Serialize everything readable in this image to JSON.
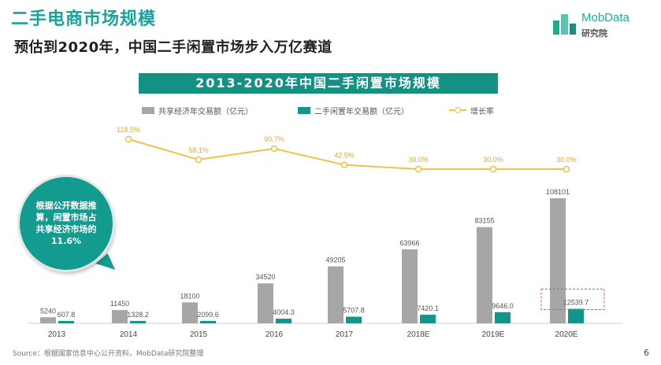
{
  "header": {
    "title": "二手电商市场规模",
    "subtitle": "预估到2020年，中国二手闲置市场步入万亿赛道"
  },
  "logo": {
    "name": "MobData",
    "sub": "研究院",
    "color": "#22aa8f"
  },
  "note": {
    "text": "根据公开数据推算，闲置市场占共享经济市场的11.6%"
  },
  "footer": {
    "source": "Source：根据国家信息中心公开资料，MobData研究院整理",
    "page": "6"
  },
  "colors": {
    "gray_bar": "#a6a6a6",
    "teal_bar": "#12968a",
    "rate_line": "#f0c24a",
    "accent": "#1aa39b"
  },
  "chart_data": {
    "type": "bar",
    "title": "2013-2020年中国二手闲置市场规模",
    "categories": [
      "2013",
      "2014",
      "2015",
      "2016",
      "2017",
      "2018E",
      "2019E",
      "2020E"
    ],
    "series": [
      {
        "name": "共享经济年交易额（亿元）",
        "values": [
          5240,
          11450,
          18100,
          34520,
          49205,
          63966,
          83155,
          108101
        ],
        "labels": [
          "5240",
          "11450",
          "18100",
          "34520",
          "49205",
          "63966",
          "83155",
          "108101"
        ]
      },
      {
        "name": "二手闲置年交易额（亿元）",
        "values": [
          607.8,
          1328.2,
          2099.6,
          4004.3,
          5707.8,
          7420.1,
          9646.0,
          12539.7
        ],
        "labels": [
          "607.8",
          "1328.2",
          "2099.6",
          "4004.3",
          "5707.8",
          "7420.1",
          "9646.0",
          "12539.7"
        ]
      }
    ],
    "line_series": {
      "name": "增长率",
      "values": [
        118.5,
        58.1,
        90.7,
        42.5,
        30.0,
        30.0,
        30.0
      ],
      "labels": [
        "118.5%",
        "58.1%",
        "90.7%",
        "42.5%",
        "30.0%",
        "30.0%",
        "30.0%"
      ],
      "categories": [
        "2014",
        "2015",
        "2016",
        "2017",
        "2018E",
        "2019E",
        "2020E"
      ]
    },
    "ylim": [
      0,
      108101
    ],
    "highlight": "2020E"
  }
}
